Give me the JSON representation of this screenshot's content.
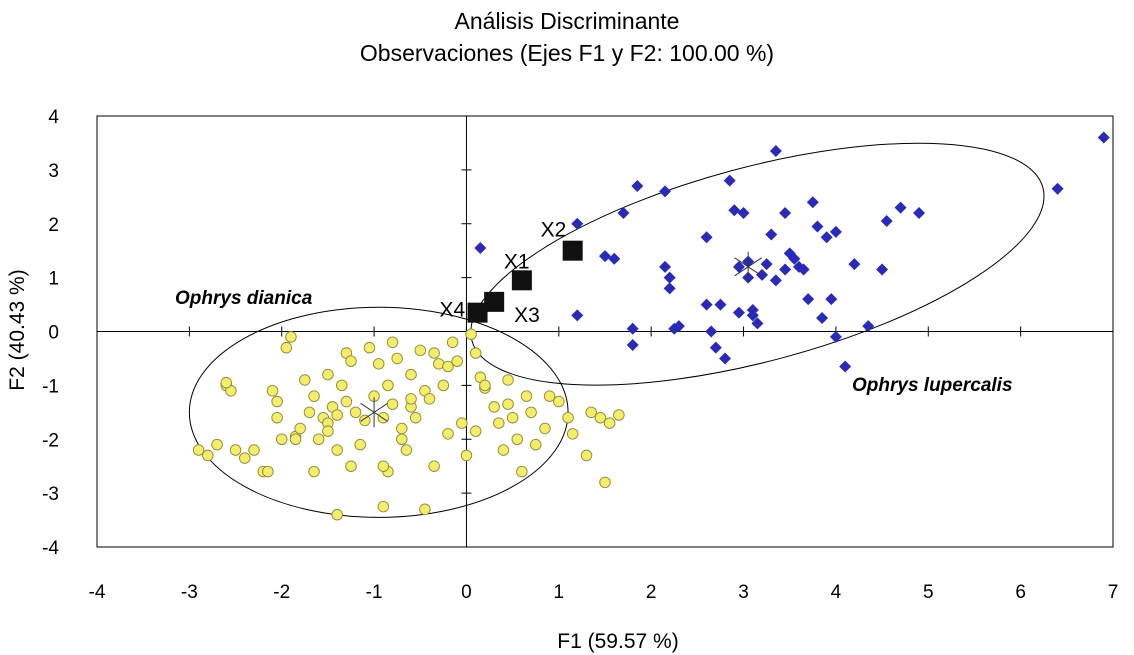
{
  "chart_data": {
    "type": "scatter",
    "title": "Análisis Discriminante",
    "subtitle": "Observaciones (Ejes F1 y F2: 100.00 %)",
    "xlabel": "F1 (59.57 %)",
    "ylabel": "F2 (40.43 %)",
    "xlim": [
      -4,
      7
    ],
    "ylim": [
      -4,
      4
    ],
    "xticks": [
      -4,
      -3,
      -2,
      -1,
      0,
      1,
      2,
      3,
      4,
      5,
      6,
      7
    ],
    "yticks": [
      -4,
      -3,
      -2,
      -1,
      0,
      1,
      2,
      3,
      4
    ],
    "grid": false,
    "colors": {
      "dianica": "#f4ec6a",
      "dianica_edge": "#8a8a3a",
      "lupercalis": "#2a2ab8",
      "unknown": "#111111"
    },
    "groups": [
      {
        "label": "Ophrys dianica",
        "marker": "circle",
        "centroid": [
          -1.0,
          -1.5
        ],
        "ellipse": {
          "center": [
            -0.95,
            -1.5
          ],
          "rx": 2.05,
          "ry": 1.95,
          "angle_deg": 0
        },
        "points": [
          [
            -2.9,
            -2.2
          ],
          [
            -2.8,
            -2.3
          ],
          [
            -2.7,
            -2.1
          ],
          [
            -2.6,
            -1.0
          ],
          [
            -2.55,
            -1.1
          ],
          [
            -2.6,
            -0.95
          ],
          [
            -2.5,
            -2.2
          ],
          [
            -2.4,
            -2.35
          ],
          [
            -2.2,
            -2.6
          ],
          [
            -2.15,
            -2.6
          ],
          [
            -2.1,
            -1.1
          ],
          [
            -2.05,
            -1.3
          ],
          [
            -2.0,
            -2.0
          ],
          [
            -1.95,
            -0.3
          ],
          [
            -1.9,
            -0.1
          ],
          [
            -1.85,
            -1.95
          ],
          [
            -1.8,
            -1.8
          ],
          [
            -1.75,
            -0.9
          ],
          [
            -1.7,
            -1.5
          ],
          [
            -1.65,
            -1.2
          ],
          [
            -1.6,
            -2.0
          ],
          [
            -1.55,
            -1.6
          ],
          [
            -1.5,
            -1.7
          ],
          [
            -1.5,
            -1.85
          ],
          [
            -1.45,
            -1.4
          ],
          [
            -1.4,
            -1.55
          ],
          [
            -1.4,
            -2.2
          ],
          [
            -1.35,
            -1.0
          ],
          [
            -1.3,
            -0.4
          ],
          [
            -1.3,
            -1.3
          ],
          [
            -1.25,
            -2.5
          ],
          [
            -1.2,
            -1.5
          ],
          [
            -1.15,
            -2.1
          ],
          [
            -1.1,
            -1.65
          ],
          [
            -1.05,
            -0.3
          ],
          [
            -1.0,
            -1.2
          ],
          [
            -0.95,
            -0.6
          ],
          [
            -0.9,
            -1.6
          ],
          [
            -0.85,
            -1.0
          ],
          [
            -0.85,
            -2.6
          ],
          [
            -0.8,
            -0.2
          ],
          [
            -0.75,
            -0.5
          ],
          [
            -0.7,
            -1.8
          ],
          [
            -0.7,
            -2.0
          ],
          [
            -0.65,
            -2.2
          ],
          [
            -0.6,
            -1.4
          ],
          [
            -0.6,
            -0.8
          ],
          [
            -0.55,
            -1.6
          ],
          [
            -0.5,
            -0.35
          ],
          [
            -0.45,
            -1.1
          ],
          [
            -0.4,
            -1.25
          ],
          [
            -0.35,
            -2.5
          ],
          [
            -0.3,
            -0.6
          ],
          [
            -0.25,
            -1.0
          ],
          [
            -0.2,
            -1.9
          ],
          [
            -0.15,
            -0.2
          ],
          [
            -0.1,
            -0.55
          ],
          [
            -0.05,
            -1.7
          ],
          [
            0.0,
            -2.3
          ],
          [
            -1.4,
            -3.4
          ],
          [
            -0.9,
            -3.25
          ],
          [
            -0.45,
            -3.3
          ],
          [
            0.05,
            -0.05
          ],
          [
            0.1,
            -0.4
          ],
          [
            0.15,
            -0.85
          ],
          [
            0.2,
            -1.05
          ],
          [
            0.3,
            -1.4
          ],
          [
            0.35,
            -1.7
          ],
          [
            0.4,
            -2.2
          ],
          [
            0.45,
            -0.9
          ],
          [
            0.5,
            -1.6
          ],
          [
            0.55,
            -2.0
          ],
          [
            0.6,
            -2.6
          ],
          [
            0.65,
            -1.2
          ],
          [
            0.7,
            -1.5
          ],
          [
            0.75,
            -2.1
          ],
          [
            0.85,
            -1.8
          ],
          [
            0.9,
            -1.2
          ],
          [
            1.0,
            -1.3
          ],
          [
            1.1,
            -1.6
          ],
          [
            1.15,
            -1.9
          ],
          [
            1.3,
            -2.3
          ],
          [
            1.35,
            -1.5
          ],
          [
            1.45,
            -1.6
          ],
          [
            1.5,
            -2.8
          ],
          [
            1.55,
            -1.7
          ],
          [
            1.65,
            -1.55
          ],
          [
            -2.05,
            -1.6
          ],
          [
            -1.85,
            -2.0
          ],
          [
            -1.25,
            -0.55
          ],
          [
            -0.8,
            -1.35
          ],
          [
            -0.6,
            -1.25
          ],
          [
            -1.65,
            -2.6
          ],
          [
            -0.2,
            -0.65
          ],
          [
            0.45,
            -1.35
          ],
          [
            -2.3,
            -2.2
          ],
          [
            -1.5,
            -0.8
          ],
          [
            -0.35,
            -0.4
          ],
          [
            0.2,
            -1.0
          ],
          [
            -0.9,
            -2.5
          ],
          [
            0.1,
            -1.85
          ]
        ]
      },
      {
        "label": "Ophrys lupercalis",
        "marker": "diamond",
        "centroid": [
          3.05,
          1.2
        ],
        "ellipse": {
          "center": [
            3.15,
            1.25
          ],
          "rx": 3.2,
          "ry": 1.8,
          "angle_deg": 15
        },
        "points": [
          [
            0.15,
            1.55
          ],
          [
            1.2,
            2.0
          ],
          [
            1.2,
            0.3
          ],
          [
            1.5,
            1.4
          ],
          [
            1.6,
            1.35
          ],
          [
            1.7,
            2.2
          ],
          [
            1.8,
            0.05
          ],
          [
            1.8,
            -0.25
          ],
          [
            1.85,
            2.7
          ],
          [
            2.15,
            2.6
          ],
          [
            2.15,
            1.2
          ],
          [
            2.2,
            1.0
          ],
          [
            2.2,
            0.8
          ],
          [
            2.25,
            0.05
          ],
          [
            2.3,
            0.1
          ],
          [
            2.6,
            1.75
          ],
          [
            2.6,
            0.5
          ],
          [
            2.65,
            0.0
          ],
          [
            2.7,
            -0.3
          ],
          [
            2.75,
            0.5
          ],
          [
            2.8,
            -0.5
          ],
          [
            2.85,
            2.8
          ],
          [
            2.9,
            2.25
          ],
          [
            2.95,
            1.2
          ],
          [
            3.0,
            2.2
          ],
          [
            3.05,
            1.0
          ],
          [
            3.1,
            0.4
          ],
          [
            3.1,
            0.3
          ],
          [
            3.15,
            0.15
          ],
          [
            3.2,
            1.05
          ],
          [
            3.25,
            1.25
          ],
          [
            3.3,
            1.8
          ],
          [
            3.35,
            3.35
          ],
          [
            3.45,
            2.2
          ],
          [
            3.5,
            1.45
          ],
          [
            3.55,
            1.35
          ],
          [
            3.6,
            1.2
          ],
          [
            3.65,
            1.15
          ],
          [
            3.7,
            0.6
          ],
          [
            3.75,
            2.4
          ],
          [
            3.8,
            1.95
          ],
          [
            3.85,
            0.25
          ],
          [
            3.9,
            1.75
          ],
          [
            3.95,
            0.6
          ],
          [
            4.0,
            1.85
          ],
          [
            4.0,
            -0.1
          ],
          [
            4.1,
            -0.65
          ],
          [
            4.2,
            1.25
          ],
          [
            4.35,
            0.1
          ],
          [
            4.5,
            1.15
          ],
          [
            4.55,
            2.05
          ],
          [
            4.7,
            2.3
          ],
          [
            4.9,
            2.2
          ],
          [
            6.4,
            2.65
          ],
          [
            6.9,
            3.6
          ],
          [
            3.35,
            0.95
          ],
          [
            3.45,
            1.15
          ],
          [
            3.05,
            1.3
          ],
          [
            2.95,
            0.35
          ]
        ]
      }
    ],
    "unknowns": {
      "marker": "square",
      "points": [
        {
          "label": "X1",
          "x": 0.6,
          "y": 0.95
        },
        {
          "label": "X2",
          "x": 1.15,
          "y": 1.5
        },
        {
          "label": "X3",
          "x": 0.3,
          "y": 0.55
        },
        {
          "label": "X4",
          "x": 0.12,
          "y": 0.35
        }
      ]
    }
  }
}
